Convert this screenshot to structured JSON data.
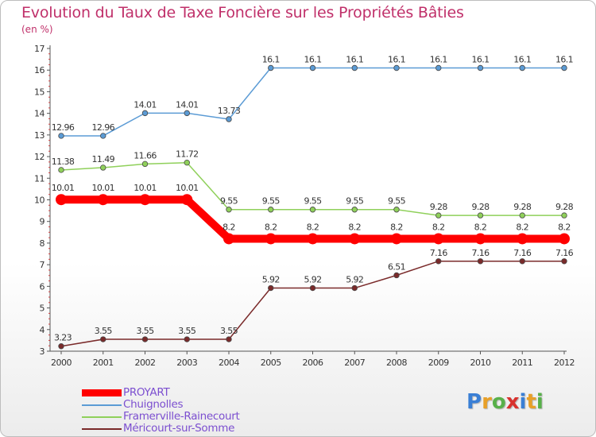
{
  "title": "Evolution du Taux de Taxe Foncière sur les Propriétés Bâties",
  "unit_label": "(en %)",
  "logo": {
    "text": "Proxiti",
    "colors": [
      "#3a7fd5",
      "#e8a028",
      "#58b04a",
      "#d8322e",
      "#3a7fd5",
      "#e8a028",
      "#58b04a"
    ]
  },
  "chart_data": {
    "type": "line",
    "title": "Evolution du Taux de Taxe Foncière sur les Propriétés Bâties",
    "ylabel": "(en %)",
    "xlabel": "",
    "ylim": [
      3,
      17
    ],
    "yticks": [
      3,
      4,
      5,
      6,
      7,
      8,
      9,
      10,
      11,
      12,
      13,
      14,
      15,
      16,
      17
    ],
    "categories": [
      "2000",
      "2001",
      "2002",
      "2003",
      "2004",
      "2005",
      "2006",
      "2007",
      "2008",
      "2009",
      "2010",
      "2011",
      "2012"
    ],
    "legend_position": "bottom-left",
    "series": [
      {
        "name": "Chuignolles",
        "color": "#5b9bd5",
        "values": [
          12.96,
          12.96,
          14.01,
          14.01,
          13.73,
          16.1,
          16.1,
          16.1,
          16.1,
          16.1,
          16.1,
          16.1,
          16.1
        ],
        "labels": [
          "12.96",
          "12.96",
          "14.01",
          "14.01",
          "13.73",
          "16.1",
          "16.1",
          "16.1",
          "16.1",
          "16.1",
          "16.1",
          "16.1",
          "16.1"
        ]
      },
      {
        "name": "Framerville-Rainecourt",
        "color": "#8fd05a",
        "values": [
          11.38,
          11.49,
          11.66,
          11.72,
          9.55,
          9.55,
          9.55,
          9.55,
          9.55,
          9.28,
          9.28,
          9.28,
          9.28
        ],
        "labels": [
          "11.38",
          "11.49",
          "11.66",
          "11.72",
          "9.55",
          "9.55",
          "9.55",
          "9.55",
          "9.55",
          "9.28",
          "9.28",
          "9.28",
          "9.28"
        ]
      },
      {
        "name": "PROYART",
        "color": "#ff0000",
        "highlight": true,
        "values": [
          10.01,
          10.01,
          10.01,
          10.01,
          8.2,
          8.2,
          8.2,
          8.2,
          8.2,
          8.2,
          8.2,
          8.2,
          8.2
        ],
        "labels": [
          "10.01",
          "10.01",
          "10.01",
          "10.01",
          "8.2",
          "8.2",
          "8.2",
          "8.2",
          "8.2",
          "8.2",
          "8.2",
          "8.2",
          "8.2"
        ]
      },
      {
        "name": "Méricourt-sur-Somme",
        "color": "#7a2a2a",
        "values": [
          3.23,
          3.55,
          3.55,
          3.55,
          3.55,
          5.92,
          5.92,
          5.92,
          6.51,
          7.16,
          7.16,
          7.16,
          7.16
        ],
        "labels": [
          "3.23",
          "3.55",
          "3.55",
          "3.55",
          "3.55",
          "5.92",
          "5.92",
          "5.92",
          "6.51",
          "7.16",
          "7.16",
          "7.16",
          "7.16"
        ]
      }
    ],
    "legend_order": [
      "PROYART",
      "Chuignolles",
      "Framerville-Rainecourt",
      "Méricourt-sur-Somme"
    ]
  }
}
